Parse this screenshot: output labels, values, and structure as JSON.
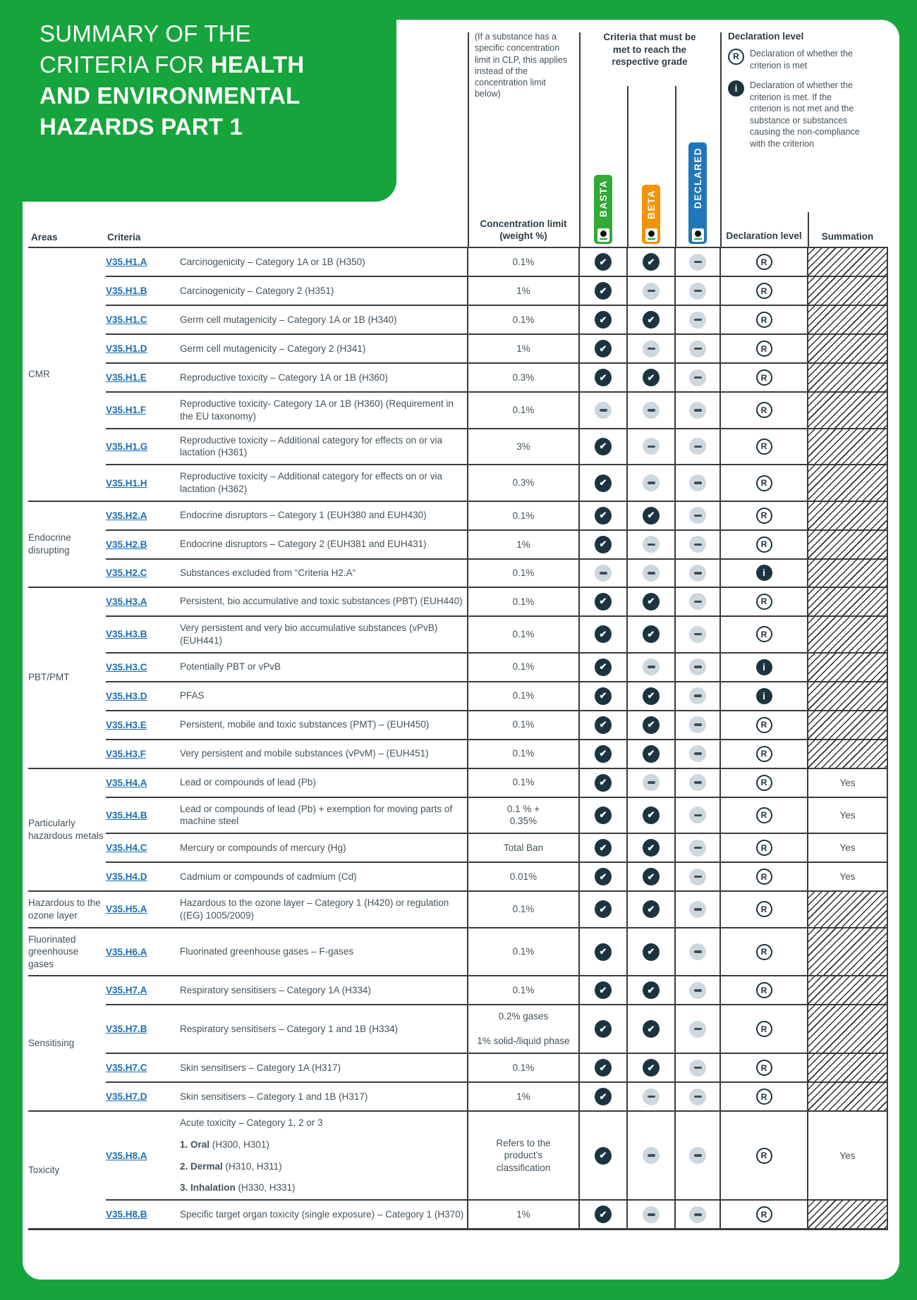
{
  "page": {
    "title_regular": "SUMMARY OF THE CRITERIA FOR ",
    "title_bold": "HEALTH AND ENVIRONMENTAL HAZARDS PART 1"
  },
  "colors": {
    "page_green": "#16A53C",
    "basta_green": "#33A938",
    "beta_orange": "#F39406",
    "declared_blue": "#2076BA",
    "icon_navy": "#1B3440",
    "dash_gray": "#CCD8DD",
    "link_blue": "#1B6EB5"
  },
  "icons": {
    "check_glyph": "✔",
    "r_glyph": "R",
    "i_glyph": "i"
  },
  "legend": {
    "clp_note": "(If a substance has a specific concentration limit in CLP, this applies instead of the concentration limit below)",
    "grades_heading": "Criteria that must be met to reach the respective grade",
    "grade_labels": [
      "BASTA",
      "BETA",
      "DECLARED"
    ],
    "declaration_heading": "Declaration level",
    "r_text": "Declaration of whether the criterion is met",
    "i_text": "Declaration of whether the criterion is met. If the criterion is not met and the substance or substances causing the non-compliance with the criterion"
  },
  "table": {
    "headers": {
      "areas": "Areas",
      "criteria": "Criteria",
      "limit": "Concentration limit (weight %)",
      "level": "Declaration level",
      "summation": "Summation"
    },
    "groups": [
      {
        "area": "CMR",
        "rows": [
          {
            "code": "V35.H1.A",
            "desc": "Carcinogenicity – Category 1A or 1B (H350)",
            "limit": "0.1%",
            "grades": [
              "check",
              "check",
              "dash"
            ],
            "level": "R",
            "summation": "hatch"
          },
          {
            "code": "V35.H1.B",
            "desc": "Carcinogenicity – Category 2 (H351)",
            "limit": "1%",
            "grades": [
              "check",
              "dash",
              "dash"
            ],
            "level": "R",
            "summation": "hatch"
          },
          {
            "code": "V35.H1.C",
            "desc": "Germ cell mutagenicity – Category 1A or 1B (H340)",
            "limit": "0.1%",
            "grades": [
              "check",
              "check",
              "dash"
            ],
            "level": "R",
            "summation": "hatch"
          },
          {
            "code": "V35.H1.D",
            "desc": "Germ cell mutagenicity – Category 2 (H341)",
            "limit": "1%",
            "grades": [
              "check",
              "dash",
              "dash"
            ],
            "level": "R",
            "summation": "hatch"
          },
          {
            "code": "V35.H1.E",
            "desc": "Reproductive toxicity – Category 1A or 1B (H360)",
            "limit": "0.3%",
            "grades": [
              "check",
              "check",
              "dash"
            ],
            "level": "R",
            "summation": "hatch"
          },
          {
            "code": "V35.H1.F",
            "desc": "Reproductive toxicity- Category 1A or 1B (H360) (Requirement in the EU taxonomy)",
            "limit": "0.1%",
            "grades": [
              "dash",
              "dash",
              "dash"
            ],
            "level": "R",
            "summation": "hatch"
          },
          {
            "code": "V35.H1.G",
            "desc": "Reproductive toxicity – Additional category for effects on or via lactation (H361)",
            "limit": "3%",
            "grades": [
              "check",
              "dash",
              "dash"
            ],
            "level": "R",
            "summation": "hatch"
          },
          {
            "code": "V35.H1.H",
            "desc": "Reproductive toxicity – Additional category for effects on or via lactation (H362)",
            "limit": "0.3%",
            "grades": [
              "check",
              "dash",
              "dash"
            ],
            "level": "R",
            "summation": "hatch"
          }
        ]
      },
      {
        "area": "Endocrine disrupting",
        "rows": [
          {
            "code": "V35.H2.A",
            "desc": "Endocrine disruptors – Category 1 (EUH380 and EUH430)",
            "limit": "0.1%",
            "grades": [
              "check",
              "check",
              "dash"
            ],
            "level": "R",
            "summation": "hatch"
          },
          {
            "code": "V35.H2.B",
            "desc": "Endocrine disruptors – Category 2 (EUH381 and EUH431)",
            "limit": "1%",
            "grades": [
              "check",
              "dash",
              "dash"
            ],
            "level": "R",
            "summation": "hatch"
          },
          {
            "code": "V35.H2.C",
            "desc": "Substances excluded from “Criteria H2.A“",
            "limit": "0.1%",
            "grades": [
              "dash",
              "dash",
              "dash"
            ],
            "level": "i",
            "summation": "hatch"
          }
        ]
      },
      {
        "area": "PBT/PMT",
        "rows": [
          {
            "code": "V35.H3.A",
            "desc": "Persistent, bio accumulative and toxic substances (PBT) (EUH440)",
            "limit": "0.1%",
            "grades": [
              "check",
              "check",
              "dash"
            ],
            "level": "R",
            "summation": "hatch"
          },
          {
            "code": "V35.H3.B",
            "desc": "Very persistent and very bio accumulative substances (vPvB) (EUH441)",
            "limit": "0.1%",
            "grades": [
              "check",
              "check",
              "dash"
            ],
            "level": "R",
            "summation": "hatch"
          },
          {
            "code": "V35.H3.C",
            "desc": "Potentially PBT or vPvB",
            "limit": "0.1%",
            "grades": [
              "check",
              "dash",
              "dash"
            ],
            "level": "i",
            "summation": "hatch"
          },
          {
            "code": "V35.H3.D",
            "desc": "PFAS",
            "limit": "0.1%",
            "grades": [
              "check",
              "check",
              "dash"
            ],
            "level": "i",
            "summation": "hatch"
          },
          {
            "code": "V35.H3.E",
            "desc": "Persistent, mobile and toxic substances (PMT) – (EUH450)",
            "limit": "0.1%",
            "grades": [
              "check",
              "check",
              "dash"
            ],
            "level": "R",
            "summation": "hatch"
          },
          {
            "code": "V35.H3.F",
            "desc": "Very persistent and mobile substances (vPvM) – (EUH451)",
            "limit": "0.1%",
            "grades": [
              "check",
              "check",
              "dash"
            ],
            "level": "R",
            "summation": "hatch"
          }
        ]
      },
      {
        "area": "Particularly hazardous metals",
        "rows": [
          {
            "code": "V35.H4.A",
            "desc": "Lead or compounds of lead (Pb)",
            "limit": "0.1%",
            "grades": [
              "check",
              "dash",
              "dash"
            ],
            "level": "R",
            "summation": "Yes"
          },
          {
            "code": "V35.H4.B",
            "desc": "Lead or compounds of lead (Pb) + exemption for moving parts of machine steel",
            "limit": "0.1 % +\n0.35%",
            "grades": [
              "check",
              "check",
              "dash"
            ],
            "level": "R",
            "summation": "Yes"
          },
          {
            "code": "V35.H4.C",
            "desc": "Mercury or compounds of mercury (Hg)",
            "limit": "Total Ban",
            "grades": [
              "check",
              "check",
              "dash"
            ],
            "level": "R",
            "summation": "Yes"
          },
          {
            "code": "V35.H4.D",
            "desc": "Cadmium or compounds of cadmium (Cd)",
            "limit": "0.01%",
            "grades": [
              "check",
              "check",
              "dash"
            ],
            "level": "R",
            "summation": "Yes"
          }
        ]
      },
      {
        "area": "Hazardous to the ozone layer",
        "rows": [
          {
            "code": "V35.H5.A",
            "desc": "Hazardous to the ozone layer – Category 1 (H420) or regulation ((EG) 1005/2009)",
            "limit": "0.1%",
            "grades": [
              "check",
              "check",
              "dash"
            ],
            "level": "R",
            "summation": "hatch"
          }
        ]
      },
      {
        "area": "Fluorinated greenhouse gases",
        "rows": [
          {
            "code": "V35.H6.A",
            "desc": "Fluorinated greenhouse gases – F-gases",
            "limit": "0.1%",
            "grades": [
              "check",
              "check",
              "dash"
            ],
            "level": "R",
            "summation": "hatch"
          }
        ]
      },
      {
        "area": "Sensitising",
        "rows": [
          {
            "code": "V35.H7.A",
            "desc": "Respiratory sensitisers – Category 1A (H334)",
            "limit": "0.1%",
            "grades": [
              "check",
              "check",
              "dash"
            ],
            "level": "R",
            "summation": "hatch"
          },
          {
            "code": "V35.H7.B",
            "desc": "Respiratory sensitisers – Category 1 and 1B (H334)",
            "limit": "0.2% gases\n\n1% solid-/liquid phase",
            "grades": [
              "check",
              "check",
              "dash"
            ],
            "level": "R",
            "summation": "hatch"
          },
          {
            "code": "V35.H7.C",
            "desc": "Skin sensitisers – Category 1A (H317)",
            "limit": "0.1%",
            "grades": [
              "check",
              "check",
              "dash"
            ],
            "level": "R",
            "summation": "hatch"
          },
          {
            "code": "V35.H7.D",
            "desc": "Skin sensitisers – Category 1 and 1B (H317)",
            "limit": "1%",
            "grades": [
              "check",
              "dash",
              "dash"
            ],
            "level": "R",
            "summation": "hatch"
          }
        ]
      },
      {
        "area": "Toxicity",
        "rows": [
          {
            "code": "V35.H8.A",
            "desc_parts": [
              {
                "b": "",
                "t": "Acute toxicity – Category 1, 2 or 3"
              },
              {
                "b": "1. Oral",
                "t": " (H300, H301)"
              },
              {
                "b": "2. Dermal",
                "t": " (H310, H311)"
              },
              {
                "b": "3. Inhalation",
                "t": " (H330, H331)"
              }
            ],
            "limit": "Refers to the\nproduct’s\nclassification",
            "grades": [
              "check",
              "dash",
              "dash"
            ],
            "level": "R",
            "summation": "Yes"
          },
          {
            "code": "V35.H8.B",
            "desc": "Specific target organ toxicity (single exposure) – Category 1 (H370)",
            "limit": "1%",
            "grades": [
              "check",
              "dash",
              "dash"
            ],
            "level": "R",
            "summation": "hatch"
          }
        ]
      }
    ]
  }
}
